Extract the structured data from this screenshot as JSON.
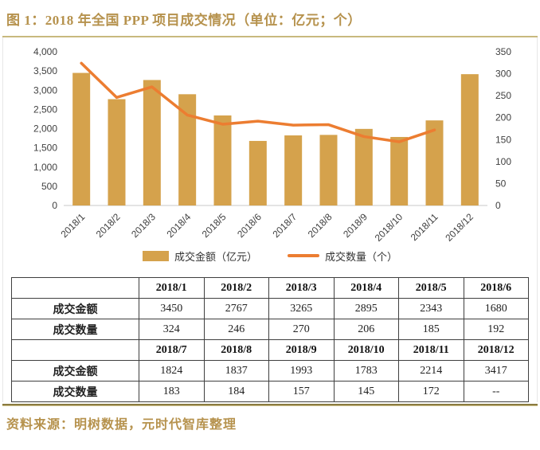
{
  "title": "图 1：2018 年全国 PPP 项目成交情况（单位：亿元；个）",
  "footer": "资料来源：明树数据，元时代智库整理",
  "colors": {
    "title_text": "#B6924D",
    "bar": "#D5A24C",
    "line": "#EC7D31",
    "axis_text": "#404040",
    "baseline": "#c9c9c9"
  },
  "chart_data": {
    "type": "bar",
    "combo": "bar+line dual axis",
    "title": "2018 年全国 PPP 项目成交情况",
    "categories": [
      "2018/1",
      "2018/2",
      "2018/3",
      "2018/4",
      "2018/5",
      "2018/6",
      "2018/7",
      "2018/8",
      "2018/9",
      "2018/10",
      "2018/11",
      "2018/12"
    ],
    "series": [
      {
        "name": "成交金额（亿元）",
        "type": "bar",
        "axis": "left",
        "values": [
          3450,
          2767,
          3265,
          2895,
          2343,
          1680,
          1824,
          1837,
          1993,
          1783,
          2214,
          3417
        ]
      },
      {
        "name": "成交数量（个）",
        "type": "line",
        "axis": "right",
        "values": [
          324,
          246,
          270,
          206,
          185,
          192,
          183,
          184,
          157,
          145,
          172,
          null
        ]
      }
    ],
    "left_axis": {
      "min": 0,
      "max": 4000,
      "step": 500
    },
    "right_axis": {
      "min": 0,
      "max": 350,
      "step": 50
    },
    "grid": false,
    "legend_position": "bottom"
  },
  "table": {
    "blocks": [
      {
        "header": [
          "",
          "2018/1",
          "2018/2",
          "2018/3",
          "2018/4",
          "2018/5",
          "2018/6"
        ],
        "rows": [
          {
            "label": "成交金额",
            "values": [
              "3450",
              "2767",
              "3265",
              "2895",
              "2343",
              "1680"
            ]
          },
          {
            "label": "成交数量",
            "values": [
              "324",
              "246",
              "270",
              "206",
              "185",
              "192"
            ]
          }
        ]
      },
      {
        "header": [
          "",
          "2018/7",
          "2018/8",
          "2018/9",
          "2018/10",
          "2018/11",
          "2018/12"
        ],
        "rows": [
          {
            "label": "成交金额",
            "values": [
              "1824",
              "1837",
              "1993",
              "1783",
              "2214",
              "3417"
            ]
          },
          {
            "label": "成交数量",
            "values": [
              "183",
              "184",
              "157",
              "145",
              "172",
              "--"
            ]
          }
        ]
      }
    ]
  }
}
